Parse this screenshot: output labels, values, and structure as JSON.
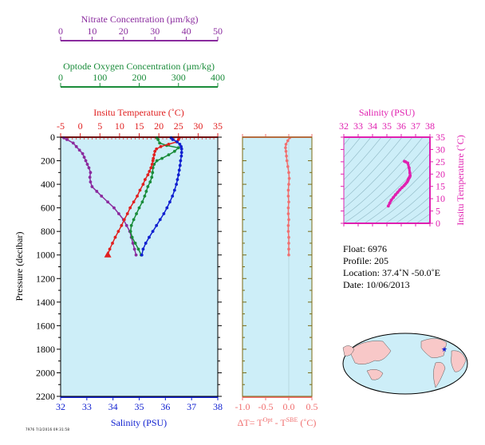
{
  "info": {
    "float": "Float:  6976",
    "profile": "Profile:  205",
    "location": "Location:  37.4˚N  -50.0˚E",
    "date": "Date:  10/06/2013"
  },
  "footer_code": "7976 7/2/2016 09:31:58",
  "colors": {
    "nitrate": "#8a2b9e",
    "oxygen": "#1a8c3a",
    "temperature": "#e02020",
    "salinity": "#1020d0",
    "dt": "#f07070",
    "ts": "#e020b0",
    "plot_bg": "#cdeef8",
    "frame": "#7a6a10",
    "land": "#f8c8c8"
  },
  "chart_data": [
    {
      "type": "scatter",
      "panel": "main-profile",
      "ylabel": "Pressure (decibar)",
      "ylim": [
        2200,
        0
      ],
      "yticks": [
        0,
        200,
        400,
        600,
        800,
        1000,
        1200,
        1400,
        1600,
        1800,
        2000,
        2200
      ],
      "axes": {
        "salinity": {
          "label": "Salinity (PSU)",
          "range": [
            32,
            38
          ],
          "ticks": [
            32,
            33,
            34,
            35,
            36,
            37,
            38
          ]
        },
        "temperature": {
          "label": "Insitu Temperature (˚C)",
          "range": [
            -5,
            35
          ],
          "ticks": [
            -5,
            0,
            5,
            10,
            15,
            20,
            25,
            30,
            35
          ]
        },
        "oxygen": {
          "label": "Optode Oxygen Concentration (µm/kg)",
          "range": [
            0,
            400
          ],
          "ticks": [
            0,
            100,
            200,
            300,
            400
          ]
        },
        "nitrate": {
          "label": "Nitrate Concentration (µm/kg)",
          "range": [
            0,
            50
          ],
          "ticks": [
            0,
            10,
            20,
            30,
            40,
            50
          ]
        }
      },
      "series": [
        {
          "key": "nitrate",
          "pressure": [
            5,
            20,
            50,
            80,
            110,
            140,
            170,
            200,
            230,
            260,
            300,
            340,
            380,
            420,
            460,
            500,
            550,
            600,
            650,
            700,
            750,
            800,
            850,
            900,
            950,
            1000
          ],
          "values": [
            1,
            2,
            4,
            5,
            6,
            7,
            7.5,
            8,
            8.5,
            9,
            9.5,
            9.3,
            9.5,
            10,
            11.5,
            13,
            15,
            17,
            18.5,
            20,
            21,
            22,
            22.5,
            23,
            23.5,
            24
          ]
        },
        {
          "key": "oxygen",
          "pressure": [
            5,
            20,
            50,
            70,
            90,
            120,
            150,
            180,
            200,
            230,
            260,
            300,
            340,
            380,
            420,
            460,
            500,
            550,
            600,
            650,
            700,
            750,
            800,
            850,
            900,
            950,
            1000
          ],
          "values": [
            245,
            248,
            252,
            270,
            300,
            290,
            275,
            258,
            245,
            238,
            235,
            234,
            232,
            228,
            222,
            218,
            214,
            208,
            200,
            193,
            186,
            180,
            178,
            182,
            190,
            198,
            205
          ]
        },
        {
          "key": "temperature",
          "pressure": [
            5,
            20,
            40,
            60,
            80,
            100,
            120,
            150,
            180,
            200,
            230,
            260,
            290,
            320,
            360,
            400,
            450,
            500,
            550,
            600,
            650,
            700,
            750,
            800,
            850,
            900,
            950,
            1000
          ],
          "values": [
            25.2,
            25,
            24.5,
            22.5,
            20.5,
            19.4,
            19,
            18.8,
            18.6,
            18.5,
            18.3,
            18.0,
            17.6,
            17.2,
            16.5,
            16.0,
            15.2,
            14.5,
            13.6,
            12.7,
            12.0,
            11.2,
            10.5,
            9.7,
            8.9,
            8.2,
            7.5,
            7.0
          ]
        },
        {
          "key": "salinity",
          "pressure": [
            5,
            20,
            40,
            60,
            80,
            100,
            130,
            160,
            200,
            240,
            280,
            320,
            360,
            400,
            450,
            500,
            550,
            600,
            650,
            700,
            750,
            800,
            850,
            900,
            950,
            1000
          ],
          "values": [
            36.22,
            36.28,
            36.45,
            36.55,
            36.6,
            36.62,
            36.62,
            36.61,
            36.58,
            36.56,
            36.53,
            36.5,
            36.46,
            36.42,
            36.35,
            36.27,
            36.17,
            36.06,
            35.94,
            35.8,
            35.66,
            35.52,
            35.38,
            35.25,
            35.15,
            35.1
          ]
        }
      ]
    },
    {
      "type": "scatter",
      "panel": "delta-t",
      "xlabel": "ΔT= T^Opt - T^SBE (˚C)",
      "xlim": [
        -1.0,
        0.5
      ],
      "xticks": [
        -1.0,
        -0.5,
        0.0,
        0.5
      ],
      "ylim": [
        2200,
        0
      ],
      "series": [
        {
          "key": "dt",
          "pressure": [
            5,
            30,
            60,
            90,
            120,
            160,
            200,
            250,
            300,
            350,
            400,
            450,
            500,
            550,
            600,
            650,
            700,
            750,
            800,
            850,
            900,
            950,
            1000
          ],
          "values": [
            0.02,
            -0.02,
            -0.06,
            -0.07,
            -0.06,
            -0.05,
            -0.04,
            -0.02,
            0.0,
            0.01,
            0.0,
            -0.01,
            -0.01,
            0.0,
            -0.01,
            -0.01,
            0.0,
            -0.01,
            -0.01,
            0.0,
            0.0,
            0.0,
            0.0
          ]
        }
      ]
    },
    {
      "type": "scatter",
      "panel": "ts-diagram",
      "title": "Salinity (PSU)",
      "xlim": [
        32,
        38
      ],
      "xticks": [
        32,
        33,
        34,
        35,
        36,
        37,
        38
      ],
      "ylabel": "Insitu Temperature (˚C)",
      "ylim": [
        0,
        35
      ],
      "yticks": [
        0,
        5,
        10,
        15,
        20,
        25,
        30,
        35
      ],
      "series": [
        {
          "key": "ts",
          "x": [
            35.1,
            35.2,
            35.3,
            35.45,
            35.6,
            35.75,
            35.9,
            36.05,
            36.2,
            36.3,
            36.4,
            36.45,
            36.48,
            36.5,
            36.53,
            36.56,
            36.58,
            36.6,
            36.62,
            36.6,
            36.55,
            36.45,
            36.3,
            36.22
          ],
          "y": [
            7.0,
            8.2,
            9.4,
            10.5,
            11.6,
            12.6,
            13.6,
            14.5,
            15.3,
            16.0,
            16.7,
            17.2,
            17.6,
            18.0,
            18.3,
            18.5,
            18.8,
            19.0,
            19.4,
            20.5,
            22.5,
            24.5,
            25.0,
            25.2
          ]
        }
      ]
    }
  ]
}
